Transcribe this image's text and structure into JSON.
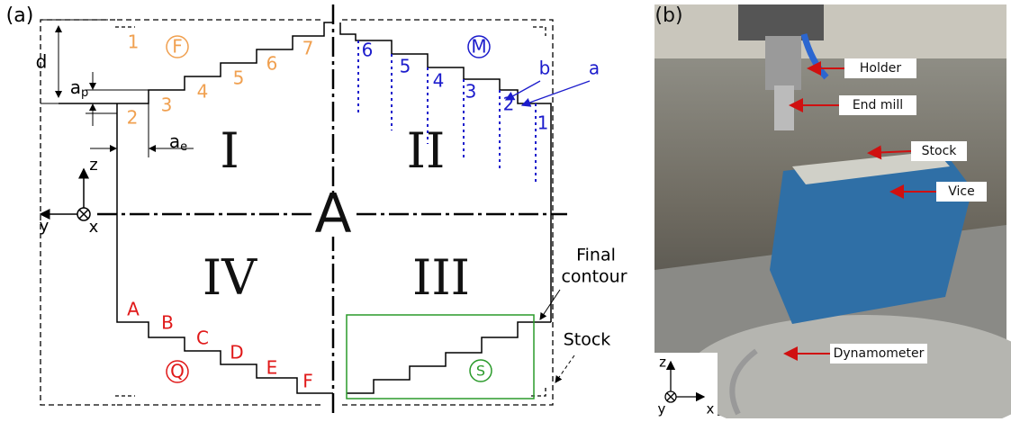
{
  "panel_a": {
    "label": "(a)",
    "dimensions": {
      "d": "d",
      "ap": {
        "base": "a",
        "sub": "p"
      },
      "ae": {
        "base": "a",
        "sub": "e"
      }
    },
    "quadrants": {
      "q1": "I",
      "q2": "II",
      "q3": "III",
      "q4": "IV",
      "center": "A"
    },
    "axes": {
      "z": "z",
      "y": "y",
      "x": "x"
    },
    "strategy_f": {
      "symbol": "F",
      "steps": [
        "1",
        "2",
        "3",
        "4",
        "5",
        "6",
        "7"
      ]
    },
    "strategy_m": {
      "symbol": "M",
      "steps": [
        "6",
        "5",
        "4",
        "3",
        "2",
        "1"
      ],
      "b": "b",
      "a": "a"
    },
    "strategy_q": {
      "symbol": "Q",
      "steps": [
        "A",
        "B",
        "C",
        "D",
        "E",
        "F"
      ]
    },
    "strategy_s": {
      "symbol": "S"
    },
    "final_contour": [
      "Final",
      "contour"
    ],
    "stock": "Stock"
  },
  "panel_b": {
    "label": "(b)",
    "callouts": {
      "holder": "Holder",
      "end_mill": "End mill",
      "stock": "Stock",
      "vice": "Vice",
      "dynamometer": "Dynamometer"
    },
    "axes": {
      "z": "z",
      "y": "y",
      "x": "x"
    }
  }
}
